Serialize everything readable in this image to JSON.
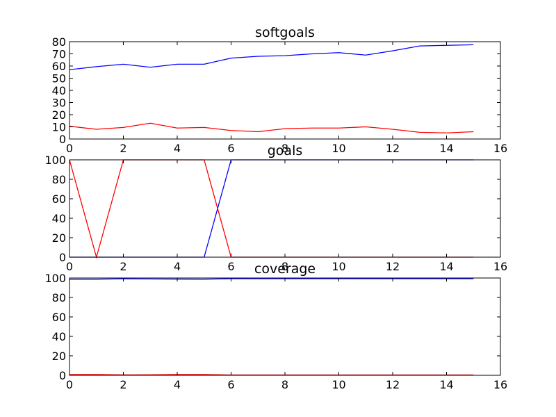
{
  "chart_data": [
    {
      "type": "line",
      "title": "softgoals",
      "xlim": [
        0,
        16
      ],
      "ylim": [
        0,
        80
      ],
      "xticks": [
        "0",
        "2",
        "4",
        "6",
        "8",
        "10",
        "12",
        "14",
        "16"
      ],
      "yticks": [
        "0",
        "10",
        "20",
        "30",
        "40",
        "50",
        "60",
        "70",
        "80"
      ],
      "grid": false,
      "x": [
        0,
        1,
        2,
        3,
        4,
        5,
        6,
        7,
        8,
        9,
        10,
        11,
        12,
        13,
        14,
        15
      ],
      "series": [
        {
          "color": "#0000ff",
          "values": [
            57,
            59.5,
            61.5,
            59,
            61.5,
            61.5,
            66.5,
            68,
            68.5,
            70,
            71,
            69,
            72.5,
            76.5,
            77,
            77.5
          ]
        },
        {
          "color": "#ff0000",
          "values": [
            10.5,
            8,
            9.5,
            13,
            9,
            9.5,
            7,
            6,
            8.5,
            9,
            9,
            10,
            8,
            5.5,
            5,
            6
          ]
        }
      ]
    },
    {
      "type": "line",
      "title": "goals",
      "xlim": [
        0,
        16
      ],
      "ylim": [
        0,
        100
      ],
      "xticks": [
        "0",
        "2",
        "4",
        "6",
        "8",
        "10",
        "12",
        "14",
        "16"
      ],
      "yticks": [
        "0",
        "20",
        "40",
        "60",
        "80",
        "100"
      ],
      "grid": false,
      "x": [
        0,
        1,
        2,
        3,
        4,
        5,
        6,
        7,
        8,
        9,
        10,
        11,
        12,
        13,
        14,
        15
      ],
      "series": [
        {
          "color": "#0000ff",
          "values": [
            0,
            0,
            0,
            0,
            0,
            0,
            100,
            100,
            100,
            100,
            100,
            100,
            100,
            100,
            100,
            100
          ]
        },
        {
          "color": "#ff0000",
          "values": [
            100,
            0,
            100,
            100,
            100,
            100,
            0,
            0,
            0,
            0,
            0,
            0,
            0,
            0,
            0,
            0
          ]
        }
      ]
    },
    {
      "type": "line",
      "title": "coverage",
      "xlim": [
        0,
        16
      ],
      "ylim": [
        0,
        100
      ],
      "xticks": [
        "0",
        "2",
        "4",
        "6",
        "8",
        "10",
        "12",
        "14",
        "16"
      ],
      "yticks": [
        "0",
        "20",
        "40",
        "60",
        "80",
        "100"
      ],
      "grid": false,
      "x": [
        0,
        1,
        2,
        3,
        4,
        5,
        6,
        7,
        8,
        9,
        10,
        11,
        12,
        13,
        14,
        15
      ],
      "series": [
        {
          "color": "#0000ff",
          "values": [
            98.8,
            98.8,
            99.2,
            99,
            98.9,
            98.8,
            99.3,
            99.3,
            99.3,
            99.3,
            99.3,
            99.3,
            99.3,
            99.3,
            99.3,
            99.3
          ]
        },
        {
          "color": "#ff0000",
          "values": [
            0.8,
            0.8,
            0.4,
            0.5,
            0.8,
            0.8,
            0.3,
            0.3,
            0.3,
            0.3,
            0.3,
            0.3,
            0.3,
            0.3,
            0.3,
            0.3
          ]
        }
      ]
    }
  ]
}
